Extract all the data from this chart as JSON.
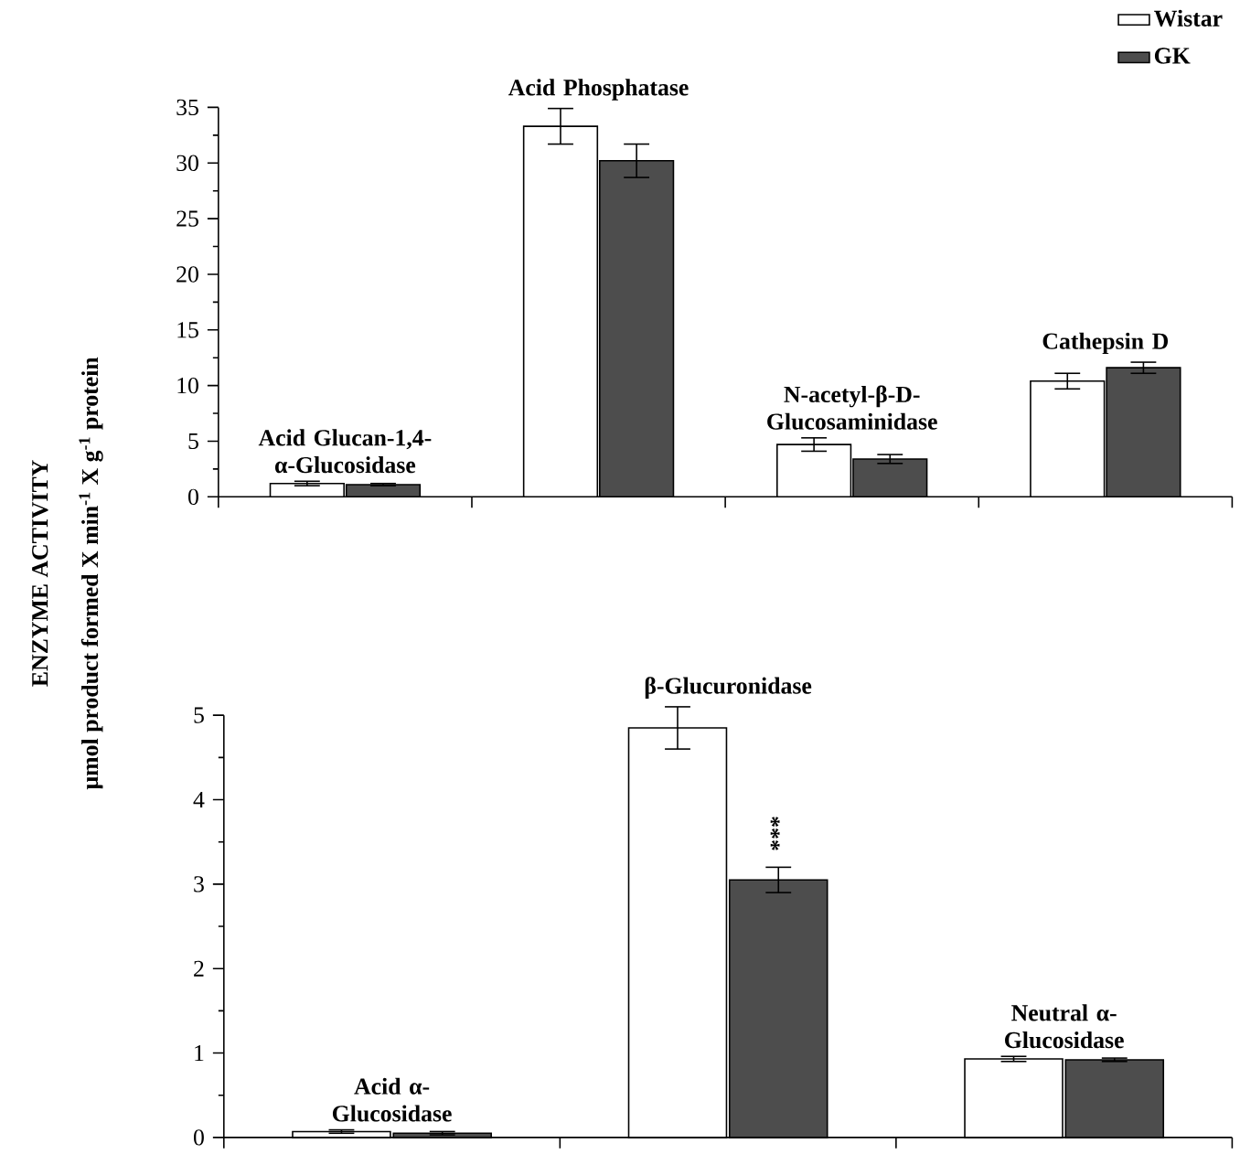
{
  "chart_data": [
    {
      "type": "bar",
      "ylabel": "ENZYME ACTIVITY",
      "categories": [
        "Acid Glucan-1,4-α-Glucosidase",
        "Acid Phosphatase",
        "N-acetyl-β-D-Glucosaminidase",
        "Cathepsin D"
      ],
      "series": [
        {
          "name": "Wistar",
          "color": "#ffffff",
          "values": [
            1.2,
            33.3,
            4.7,
            10.4
          ],
          "errors": [
            0.2,
            1.6,
            0.6,
            0.7
          ]
        },
        {
          "name": "GK",
          "color": "#4d4d4d",
          "values": [
            1.1,
            30.2,
            3.4,
            11.6
          ],
          "errors": [
            0.1,
            1.5,
            0.4,
            0.5
          ]
        }
      ],
      "ylim": [
        0,
        35
      ],
      "yticks": [
        0,
        5,
        10,
        15,
        20,
        25,
        30,
        35
      ],
      "legend": "top right",
      "tick_labels": "y"
    },
    {
      "type": "bar",
      "ylabel": "μmol product formed X min$^{-1}$ X g$^{-1}$ protein",
      "categories": [
        "Acid α-Glucosidase",
        "β-Glucuronidase",
        "Neutral α-Glucosidase"
      ],
      "series": [
        {
          "color": "#ffffff",
          "values": [
            0.07,
            4.85,
            0.93
          ],
          "errors": [
            0.02,
            0.25,
            0.03
          ]
        },
        {
          "color": "#4d4d4d",
          "values": [
            0.05,
            3.05,
            0.92
          ],
          "errors": [
            0.02,
            0.15,
            0.02
          ]
        }
      ],
      "annotations": [
        {
          "text": "***",
          "x": "β-Glucuronidase",
          "y": 3.6
        }
      ],
      "ylim": [
        0,
        5
      ],
      "yticks": [
        0,
        1,
        2,
        3,
        4,
        5
      ],
      "tick_labels": "y"
    }
  ]
}
